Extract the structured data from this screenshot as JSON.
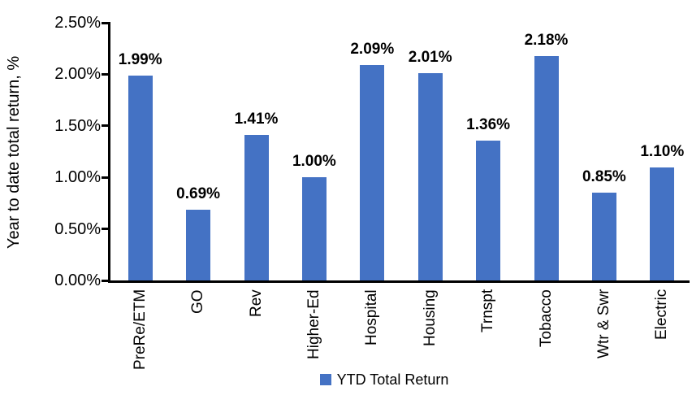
{
  "chart_data": {
    "type": "bar",
    "title": "",
    "ylabel": "Year to date total return, %",
    "xlabel": "",
    "categories": [
      "PreRe/ETM",
      "GO",
      "Rev",
      "Higher-Ed",
      "Hospital",
      "Housing",
      "Trnspt",
      "Tobacco",
      "Wtr & Swr",
      "Electric"
    ],
    "values": [
      1.99,
      0.69,
      1.41,
      1.0,
      2.09,
      2.01,
      1.36,
      2.18,
      0.85,
      1.1
    ],
    "data_labels": [
      "1.99%",
      "0.69%",
      "1.41%",
      "1.00%",
      "2.09%",
      "2.01%",
      "1.36%",
      "2.18%",
      "0.85%",
      "1.10%"
    ],
    "ylim": [
      0,
      2.5
    ],
    "yticks": [
      {
        "value": 0,
        "label": "0.00%"
      },
      {
        "value": 0.5,
        "label": "0.50%"
      },
      {
        "value": 1.0,
        "label": "1.00%"
      },
      {
        "value": 1.5,
        "label": "1.50%"
      },
      {
        "value": 2.0,
        "label": "2.00%"
      },
      {
        "value": 2.5,
        "label": "2.50%"
      }
    ],
    "grid": false,
    "legend_position": "bottom",
    "legend": [
      {
        "label": "YTD Total Return",
        "color": "#4472C4"
      }
    ],
    "bar_color": "#4472C4",
    "axis_color": "#000000",
    "text_color": "#000000",
    "background_color": "#FFFFFF"
  }
}
